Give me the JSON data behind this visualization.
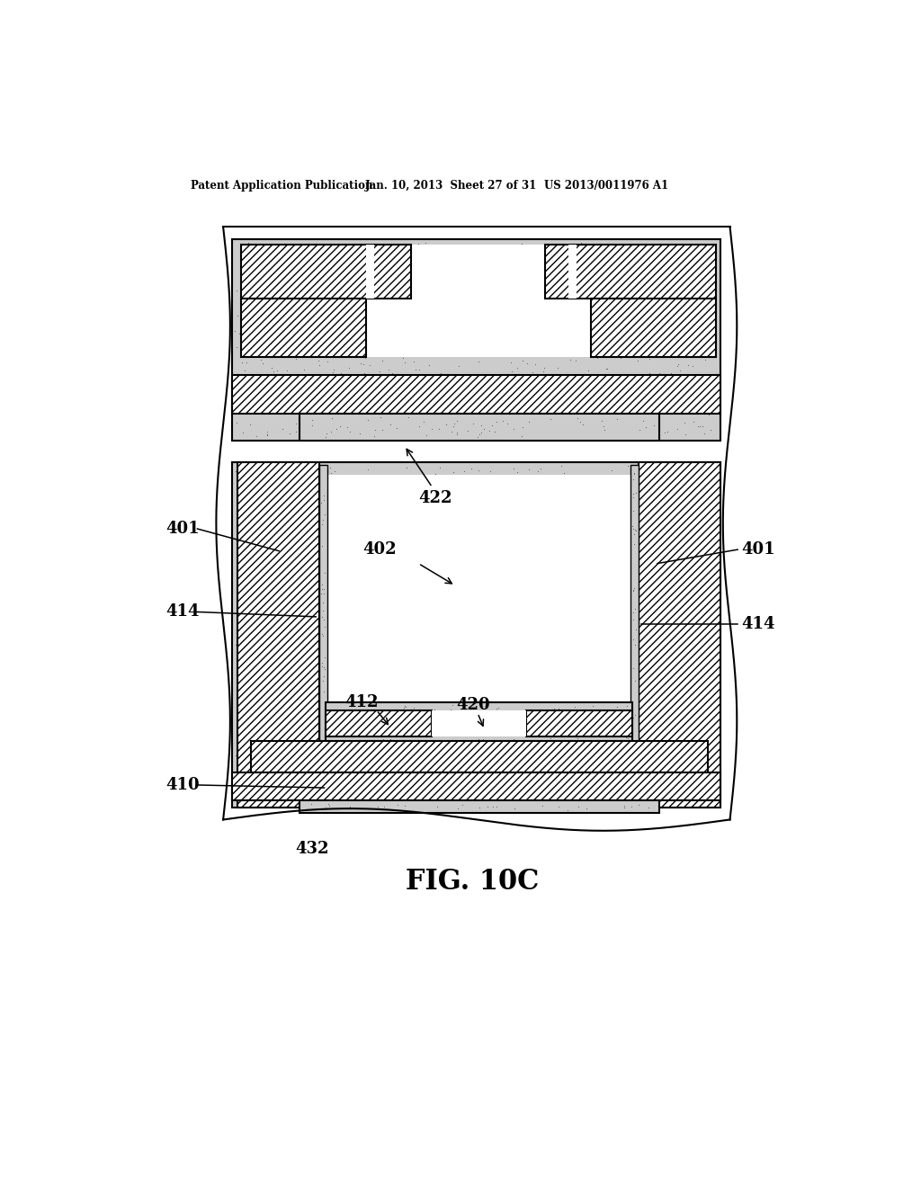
{
  "header_left": "Patent Application Publication",
  "header_mid": "Jan. 10, 2013  Sheet 27 of 31",
  "header_right": "US 2013/0011976 A1",
  "fig_caption": "FIG. 10C",
  "ref_432": "432",
  "ref_401": "401",
  "ref_414": "414",
  "ref_422": "422",
  "ref_402": "402",
  "ref_412": "412",
  "ref_420": "420",
  "ref_410": "410",
  "bg": "#ffffff",
  "stipple_gray": "#cccccc",
  "dot_color": "#555555",
  "line_color": "#000000"
}
